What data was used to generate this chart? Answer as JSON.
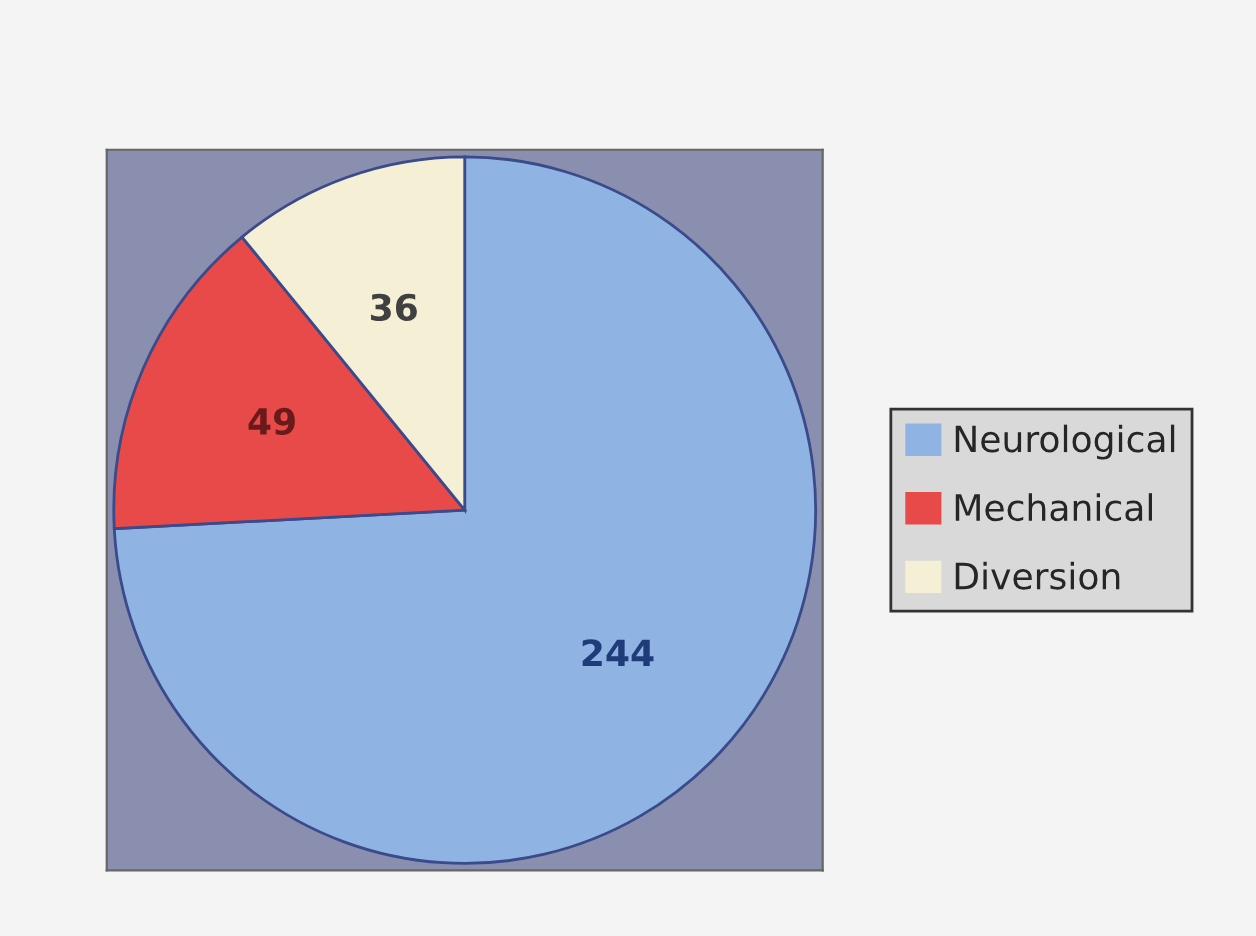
{
  "chart_data": {
    "type": "pie",
    "categories": [
      "Neurological",
      "Mechanical",
      "Diversion"
    ],
    "values": [
      244,
      49,
      36
    ],
    "colors": [
      "#8fb4e3",
      "#e84a4a",
      "#f5efd6"
    ],
    "data_labels": true,
    "legend": "right"
  }
}
